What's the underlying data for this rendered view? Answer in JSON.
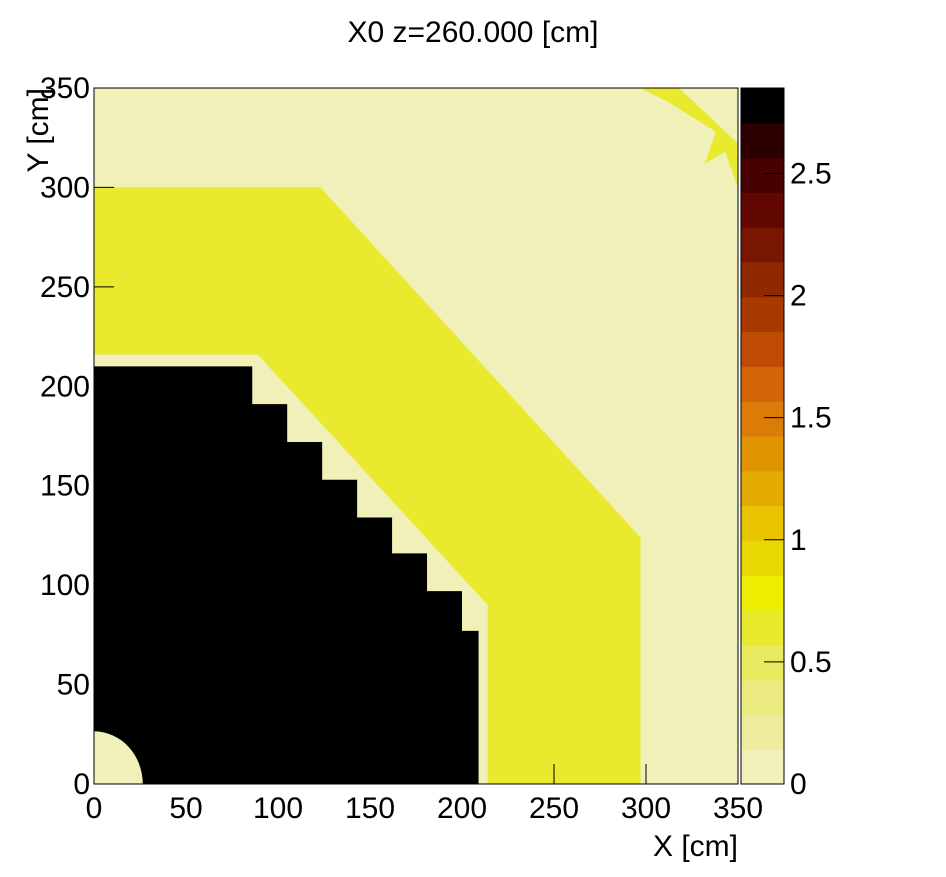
{
  "chart_data": {
    "type": "heatmap",
    "title": "X0 z=260.000 [cm]",
    "x_label": "X [cm]",
    "y_label": "Y [cm]",
    "xlim": [
      0,
      350
    ],
    "ylim": [
      0,
      350
    ],
    "xticks": [
      0,
      50,
      100,
      150,
      200,
      250,
      300,
      350
    ],
    "yticks": [
      0,
      50,
      100,
      150,
      200,
      250,
      300,
      350
    ],
    "zlim": [
      0,
      2.85
    ],
    "zticks": [
      0,
      0.5,
      1,
      1.5,
      2,
      2.5
    ],
    "palette": [
      "#f0f0b8",
      "#ecec9c",
      "#eaea80",
      "#eaea60",
      "#e9e92e",
      "#eeee00",
      "#e8d800",
      "#e8c400",
      "#e4ac00",
      "#e09400",
      "#dc7c08",
      "#d46408",
      "#c04c04",
      "#a83a00",
      "#902800",
      "#781600",
      "#600800",
      "#480000",
      "#2c0000",
      "#000000"
    ],
    "regions": [
      {
        "points": [
          [
            0,
            0
          ],
          [
            350,
            0
          ],
          [
            350,
            350
          ],
          [
            0,
            350
          ]
        ],
        "value": 0.05
      },
      {
        "points": [
          [
            0,
            300
          ],
          [
            123,
            300
          ],
          [
            297,
            124
          ],
          [
            297,
            0
          ],
          [
            214,
            0
          ],
          [
            214,
            90
          ],
          [
            89,
            216
          ],
          [
            0,
            216
          ]
        ],
        "value": 0.6
      },
      {
        "points": [
          [
            297,
            350
          ],
          [
            318,
            350
          ],
          [
            350,
            322
          ],
          [
            350,
            300
          ],
          [
            343,
            318
          ],
          [
            332,
            312
          ],
          [
            338,
            328
          ],
          [
            312,
            343
          ]
        ],
        "value": 0.6
      },
      {
        "points": [
          [
            0,
            210
          ],
          [
            86,
            210
          ],
          [
            86,
            191
          ],
          [
            105,
            191
          ],
          [
            105,
            172
          ],
          [
            124,
            172
          ],
          [
            124,
            153
          ],
          [
            143,
            153
          ],
          [
            143,
            134
          ],
          [
            162,
            134
          ],
          [
            162,
            116
          ],
          [
            181,
            116
          ],
          [
            181,
            97
          ],
          [
            200,
            97
          ],
          [
            200,
            77
          ],
          [
            209,
            77
          ],
          [
            209,
            0
          ],
          [
            0,
            0
          ]
        ],
        "value": 2.8
      },
      {
        "circle": [
          0,
          0,
          26.5
        ],
        "value": 0.05
      }
    ]
  }
}
